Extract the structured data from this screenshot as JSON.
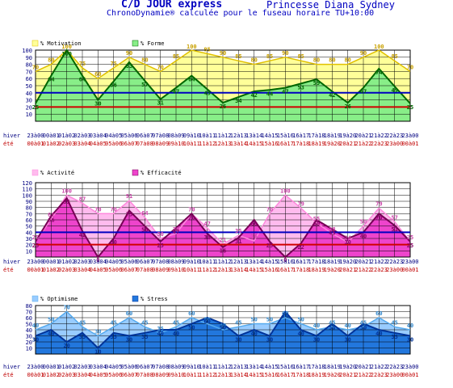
{
  "header": {
    "title": "C/D JOUR express",
    "name": "Princesse Diana Sydney",
    "subtitle": "ChronoDynamie® calculée pour le fuseau horaire TU+10:00"
  },
  "row_labels": {
    "winter": "hiver",
    "summer": "été"
  },
  "colors": {
    "grid": "#000000",
    "blue_line": "#0000c0",
    "red_line": "#d00000",
    "winter_text": "#000080",
    "summer_text": "#c00000"
  },
  "chart_data": [
    {
      "type": "area",
      "categories": [
        "23à00",
        "00à01",
        "01à02",
        "02à03",
        "03à04",
        "04à05",
        "05à06",
        "06à07",
        "07à08",
        "08à09",
        "09à10",
        "10à11",
        "11à12",
        "12à13",
        "13à14",
        "14à15",
        "15à16",
        "16à17",
        "17à18",
        "18à19",
        "19à20",
        "20à21",
        "21à22",
        "22à23",
        "23à00"
      ],
      "categories_summer": [
        "00à01",
        "01à02",
        "02à03",
        "03à04",
        "04à05",
        "05à06",
        "06à07",
        "07à08",
        "08à09",
        "09à10",
        "10à11",
        "11à12",
        "12à13",
        "13à14",
        "14à15",
        "15à16",
        "16à17",
        "17à18",
        "18à19",
        "19à20",
        "20à21",
        "21à22",
        "22à23",
        "23à00",
        "00à01"
      ],
      "y_ticks": [
        10,
        20,
        30,
        40,
        50,
        60,
        70,
        80,
        90,
        100
      ],
      "ylim": [
        0,
        100
      ],
      "blue_level": 40,
      "red_level": 20,
      "series": [
        {
          "name": "% Motivation",
          "fill": "#ffff99",
          "line": "#e0c000",
          "label_color": "#c8a000",
          "values": [
            70,
            80,
            100,
            75,
            60,
            75,
            90,
            80,
            70,
            85,
            100,
            95,
            90,
            85,
            80,
            85,
            90,
            85,
            80,
            80,
            80,
            90,
            100,
            85,
            70
          ]
        },
        {
          "name": "% Forme",
          "fill": "#88ee88",
          "line": "#006600",
          "label_color": "#006600",
          "values": [
            25,
            64,
            100,
            64,
            30,
            56,
            83,
            57,
            31,
            47,
            64,
            45,
            26,
            34,
            42,
            44,
            47,
            53,
            59,
            42,
            26,
            47,
            74,
            49,
            25
          ]
        }
      ]
    },
    {
      "type": "area",
      "categories": [
        "23à00",
        "00à01",
        "01à02",
        "02à03",
        "03à04",
        "04à05",
        "05à06",
        "06à07",
        "07à08",
        "08à09",
        "09à10",
        "10à11",
        "11à12",
        "12à13",
        "13à14",
        "14à15",
        "15à16",
        "16à17",
        "17à18",
        "18à19",
        "19à20",
        "20à21",
        "21à22",
        "22à23",
        "23à00"
      ],
      "categories_summer": [
        "00à01",
        "01à02",
        "02à03",
        "03à04",
        "04à05",
        "05à06",
        "06à07",
        "07à08",
        "08à09",
        "09à10",
        "10à11",
        "11à12",
        "12à13",
        "13à14",
        "14à15",
        "15à16",
        "16à17",
        "17à18",
        "18à19",
        "19à20",
        "20à21",
        "21à22",
        "22à23",
        "23à00",
        "00à01"
      ],
      "y_ticks": [
        10,
        20,
        30,
        40,
        50,
        60,
        70,
        80,
        90,
        100,
        110,
        120
      ],
      "ylim": [
        0,
        120
      ],
      "blue_level": 40,
      "red_level": 20,
      "series": [
        {
          "name": "% Activité",
          "fill": "#ffbbee",
          "line": "#ff88dd",
          "label_color": "#cc44aa",
          "values": [
            25,
            61,
            100,
            87,
            70,
            70,
            91,
            64,
            30,
            38,
            70,
            47,
            21,
            35,
            26,
            70,
            100,
            79,
            55,
            38,
            24,
            50,
            79,
            57,
            25
          ]
        },
        {
          "name": "% Efficacité",
          "fill": "#ee44cc",
          "line": "#770055",
          "label_color": "#880066",
          "values": [
            25,
            66,
            95,
            42,
            0,
            30,
            75,
            50,
            25,
            47,
            70,
            38,
            16,
            31,
            60,
            25,
            0,
            22,
            60,
            45,
            30,
            40,
            70,
            51,
            25
          ]
        }
      ]
    },
    {
      "type": "area",
      "categories": [
        "23à00",
        "00à01",
        "01à02",
        "02à03",
        "03à04",
        "04à05",
        "05à06",
        "06à07",
        "07à08",
        "08à09",
        "09à10",
        "10à11",
        "11à12",
        "12à13",
        "13à14",
        "14à15",
        "15à16",
        "16à17",
        "17à18",
        "18à19",
        "19à20",
        "20à21",
        "21à22",
        "22à23",
        "23à00"
      ],
      "categories_summer": [
        "00à01",
        "01à02",
        "02à03",
        "03à04",
        "04à05",
        "05à06",
        "06à07",
        "07à08",
        "08à09",
        "09à10",
        "10à11",
        "11à12",
        "12à13",
        "13à14",
        "14à15",
        "15à16",
        "16à17",
        "17à18",
        "18à19",
        "19à20",
        "20à21",
        "21à22",
        "22à23",
        "23à00",
        "00à01"
      ],
      "y_ticks": [
        10,
        20,
        30,
        40,
        50,
        60,
        70,
        80
      ],
      "ylim": [
        0,
        80
      ],
      "blue_level": null,
      "red_level": null,
      "series": [
        {
          "name": "% Optimisme",
          "fill": "#99ccff",
          "line": "#55aaee",
          "label_color": "#3388cc",
          "values": [
            40,
            50,
            70,
            45,
            30,
            45,
            60,
            45,
            35,
            45,
            60,
            50,
            40,
            45,
            50,
            50,
            60,
            50,
            40,
            45,
            40,
            45,
            60,
            45,
            40
          ]
        },
        {
          "name": "% Stress",
          "fill": "#2277dd",
          "line": "#003399",
          "label_color": "#003399",
          "values": [
            30,
            40,
            20,
            35,
            10,
            35,
            30,
            35,
            40,
            40,
            50,
            60,
            50,
            30,
            40,
            30,
            70,
            40,
            30,
            50,
            30,
            50,
            40,
            35,
            30
          ]
        }
      ]
    }
  ]
}
